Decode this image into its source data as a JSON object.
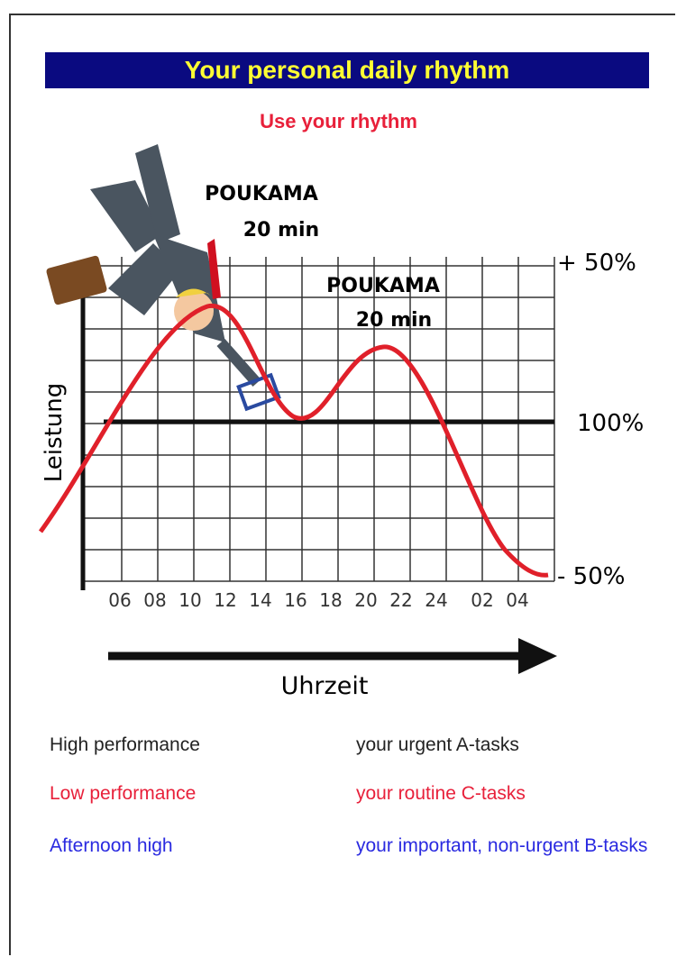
{
  "header": {
    "title": "Your personal daily rhythm",
    "subtitle": "Use your rhythm"
  },
  "chart": {
    "annotations": [
      {
        "title": "POUKAMA",
        "duration": "20 min"
      },
      {
        "title": "POUKAMA",
        "duration": "20 min"
      }
    ],
    "y_labels": [
      "+ 50%",
      "100%",
      "- 50%"
    ],
    "y_axis_title": "Leistung",
    "x_labels": [
      "06",
      "08",
      "10",
      "12",
      "14",
      "16",
      "18",
      "20",
      "22",
      "24",
      "02",
      "04"
    ],
    "x_axis_title": "Uhrzeit"
  },
  "legend": [
    {
      "level": "High performance",
      "tasks": "your urgent A-tasks"
    },
    {
      "level": "Low performance",
      "tasks": "your routine C-tasks"
    },
    {
      "level": "Afternoon high",
      "tasks": "your important, non-urgent B-tasks"
    }
  ]
}
